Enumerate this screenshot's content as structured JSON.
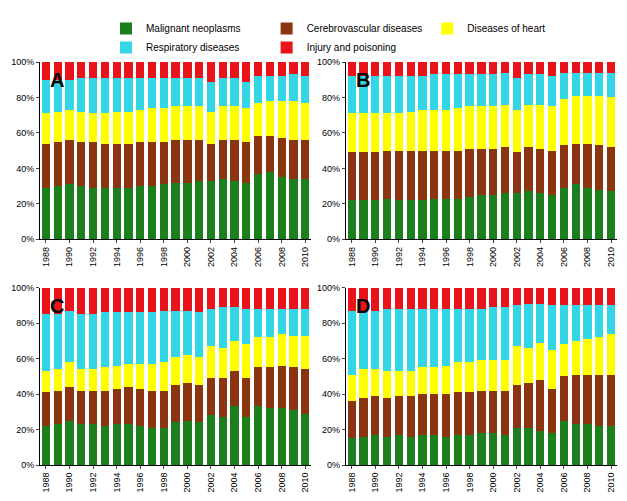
{
  "chart_data": [
    {
      "type": "bar",
      "title": "A",
      "stacked": true,
      "grid": false,
      "legend": "top",
      "categories": [
        "1988",
        null,
        "1990",
        null,
        "1992",
        null,
        "1994",
        null,
        "1996",
        null,
        "1998",
        null,
        "2000",
        null,
        "2002",
        null,
        "2004",
        null,
        "2006",
        null,
        "2008",
        null,
        "2010"
      ],
      "ylim": [
        0,
        100
      ],
      "yticks": [
        {
          "value": 0,
          "label": "0%"
        },
        {
          "value": 20,
          "label": "20%"
        },
        {
          "value": 40,
          "label": "40%"
        },
        {
          "value": 60,
          "label": "60%"
        },
        {
          "value": 80,
          "label": "80%"
        },
        {
          "value": 100,
          "label": "100%"
        }
      ],
      "series": [
        {
          "name": "Malignant neoplasms",
          "color": "#1b7f1b",
          "values": [
            29,
            30,
            31,
            30,
            29,
            29,
            29,
            29,
            30,
            30,
            31,
            32,
            32,
            33,
            33,
            34,
            33,
            32,
            37,
            38,
            35,
            34,
            34
          ]
        },
        {
          "name": "Cerebrovascular diseases",
          "color": "#8b3510",
          "values": [
            25,
            25,
            25,
            25,
            26,
            25,
            25,
            25,
            25,
            25,
            24,
            24,
            24,
            23,
            21,
            22,
            23,
            23,
            21,
            20,
            22,
            22,
            22
          ]
        },
        {
          "name": "Diseases of heart",
          "color": "#ffff00",
          "values": [
            17,
            17,
            17,
            17,
            16,
            17,
            18,
            18,
            18,
            19,
            19,
            19,
            19,
            19,
            18,
            19,
            19,
            19,
            19,
            20,
            21,
            22,
            21
          ]
        },
        {
          "name": "Respiratory diseases",
          "color": "#33d6e6",
          "values": [
            19,
            18,
            17,
            19,
            20,
            20,
            19,
            19,
            18,
            17,
            17,
            16,
            16,
            16,
            17,
            16,
            16,
            15,
            15,
            14,
            14,
            15,
            15
          ]
        },
        {
          "name": "Injury and poisoning",
          "color": "#e8141a",
          "values": [
            10,
            10,
            10,
            9,
            9,
            9,
            9,
            9,
            9,
            9,
            9,
            9,
            9,
            9,
            11,
            9,
            9,
            11,
            8,
            8,
            8,
            7,
            8
          ]
        }
      ]
    },
    {
      "type": "bar",
      "title": "B",
      "stacked": true,
      "grid": false,
      "legend": "top",
      "categories": [
        "1988",
        null,
        "1990",
        null,
        "1992",
        null,
        "1994",
        null,
        "1996",
        null,
        "1998",
        null,
        "2000",
        null,
        "2002",
        null,
        "2004",
        null,
        "2006",
        null,
        "2008",
        null,
        "2010"
      ],
      "ylim": [
        0,
        100
      ],
      "yticks": [
        {
          "value": 0,
          "label": "0%"
        },
        {
          "value": 20,
          "label": "20%"
        },
        {
          "value": 40,
          "label": "40%"
        },
        {
          "value": 60,
          "label": "60%"
        },
        {
          "value": 80,
          "label": "80%"
        },
        {
          "value": 100,
          "label": "100%"
        }
      ],
      "series": [
        {
          "name": "Malignant neoplasms",
          "color": "#1b7f1b",
          "values": [
            22,
            22,
            22,
            23,
            22,
            22,
            22,
            23,
            23,
            23,
            24,
            25,
            25,
            26,
            26,
            27,
            26,
            25,
            29,
            31,
            29,
            28,
            27
          ]
        },
        {
          "name": "Cerebrovascular diseases",
          "color": "#8b3510",
          "values": [
            27,
            27,
            27,
            27,
            28,
            28,
            28,
            27,
            27,
            27,
            27,
            26,
            26,
            26,
            23,
            25,
            25,
            25,
            24,
            23,
            25,
            25,
            25
          ]
        },
        {
          "name": "Diseases of heart",
          "color": "#ffff00",
          "values": [
            22,
            22,
            22,
            21,
            21,
            22,
            23,
            23,
            23,
            24,
            24,
            24,
            24,
            24,
            24,
            24,
            25,
            25,
            26,
            27,
            27,
            28,
            28
          ]
        },
        {
          "name": "Respiratory diseases",
          "color": "#33d6e6",
          "values": [
            21,
            21,
            21,
            21,
            21,
            20,
            19,
            20,
            20,
            19,
            18,
            18,
            18,
            18,
            18,
            17,
            17,
            17,
            15,
            13,
            13,
            13,
            14
          ]
        },
        {
          "name": "Injury and poisoning",
          "color": "#e8141a",
          "values": [
            8,
            8,
            8,
            8,
            8,
            8,
            8,
            7,
            7,
            7,
            7,
            7,
            7,
            6,
            9,
            7,
            7,
            8,
            6,
            6,
            6,
            6,
            6
          ]
        }
      ]
    },
    {
      "type": "bar",
      "title": "C",
      "stacked": true,
      "grid": false,
      "legend": "top",
      "categories": [
        "1988",
        null,
        "1990",
        null,
        "1992",
        null,
        "1994",
        null,
        "1996",
        null,
        "1998",
        null,
        "2000",
        null,
        "2002",
        null,
        "2004",
        null,
        "2006",
        null,
        "2008",
        null,
        "2010"
      ],
      "ylim": [
        0,
        100
      ],
      "yticks": [
        {
          "value": 0,
          "label": "0%"
        },
        {
          "value": 20,
          "label": "20%"
        },
        {
          "value": 40,
          "label": "40%"
        },
        {
          "value": 60,
          "label": "60%"
        },
        {
          "value": 80,
          "label": "80%"
        },
        {
          "value": 100,
          "label": "100%"
        }
      ],
      "series": [
        {
          "name": "Malignant neoplasms",
          "color": "#1b7f1b",
          "values": [
            22,
            23,
            25,
            23,
            23,
            22,
            23,
            23,
            22,
            21,
            21,
            24,
            25,
            24,
            28,
            27,
            33,
            27,
            33,
            32,
            32,
            31,
            29
          ]
        },
        {
          "name": "Cerebrovascular diseases",
          "color": "#8b3510",
          "values": [
            19,
            19,
            19,
            19,
            19,
            20,
            20,
            21,
            21,
            21,
            21,
            21,
            21,
            21,
            21,
            22,
            20,
            22,
            22,
            23,
            24,
            24,
            25
          ]
        },
        {
          "name": "Diseases of heart",
          "color": "#ffff00",
          "values": [
            12,
            12,
            14,
            12,
            12,
            13,
            13,
            13,
            14,
            15,
            16,
            16,
            16,
            16,
            18,
            17,
            17,
            19,
            17,
            17,
            18,
            18,
            19
          ]
        },
        {
          "name": "Respiratory diseases",
          "color": "#33d6e6",
          "values": [
            32,
            31,
            29,
            31,
            31,
            31,
            30,
            29,
            29,
            29,
            29,
            26,
            25,
            25,
            21,
            23,
            19,
            20,
            16,
            16,
            14,
            15,
            15
          ]
        },
        {
          "name": "Injury and poisoning",
          "color": "#e8141a",
          "values": [
            15,
            15,
            13,
            15,
            15,
            14,
            14,
            14,
            14,
            14,
            13,
            13,
            13,
            14,
            12,
            11,
            11,
            12,
            12,
            12,
            12,
            12,
            12
          ]
        }
      ]
    },
    {
      "type": "bar",
      "title": "D",
      "stacked": true,
      "grid": false,
      "legend": "top",
      "categories": [
        "1988",
        null,
        "1990",
        null,
        "1992",
        null,
        "1994",
        null,
        "1996",
        null,
        "1998",
        null,
        "2000",
        null,
        "2002",
        null,
        "2004",
        null,
        "2006",
        null,
        "2008",
        null,
        "2010"
      ],
      "ylim": [
        0,
        100
      ],
      "yticks": [
        {
          "value": 0,
          "label": "0%"
        },
        {
          "value": 20,
          "label": "20%"
        },
        {
          "value": 40,
          "label": "40%"
        },
        {
          "value": 60,
          "label": "60%"
        },
        {
          "value": 80,
          "label": "80%"
        },
        {
          "value": 100,
          "label": "100%"
        }
      ],
      "series": [
        {
          "name": "Malignant neoplasms",
          "color": "#1b7f1b",
          "values": [
            15,
            16,
            17,
            16,
            17,
            16,
            17,
            17,
            16,
            17,
            17,
            18,
            18,
            17,
            21,
            21,
            19,
            18,
            25,
            23,
            23,
            22,
            22
          ]
        },
        {
          "name": "Cerebrovascular diseases",
          "color": "#8b3510",
          "values": [
            21,
            22,
            22,
            22,
            22,
            23,
            23,
            23,
            24,
            24,
            24,
            24,
            24,
            25,
            24,
            25,
            29,
            25,
            25,
            28,
            28,
            29,
            29
          ]
        },
        {
          "name": "Diseases of heart",
          "color": "#ffff00",
          "values": [
            15,
            16,
            15,
            15,
            14,
            14,
            15,
            15,
            16,
            17,
            17,
            17,
            17,
            17,
            22,
            20,
            21,
            22,
            18,
            19,
            20,
            21,
            23
          ]
        },
        {
          "name": "Respiratory diseases",
          "color": "#33d6e6",
          "values": [
            36,
            33,
            33,
            35,
            35,
            35,
            33,
            33,
            32,
            30,
            30,
            29,
            30,
            30,
            23,
            25,
            22,
            25,
            22,
            20,
            19,
            18,
            16
          ]
        },
        {
          "name": "Injury and poisoning",
          "color": "#e8141a",
          "values": [
            13,
            13,
            13,
            12,
            12,
            12,
            12,
            12,
            12,
            12,
            12,
            12,
            11,
            11,
            10,
            9,
            9,
            10,
            10,
            10,
            10,
            10,
            10
          ]
        }
      ]
    }
  ]
}
